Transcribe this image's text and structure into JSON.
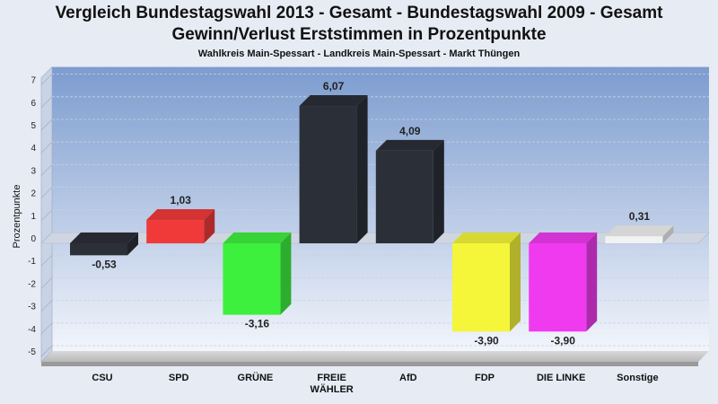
{
  "header": {
    "title_line1": "Vergleich Bundestagswahl 2013 - Gesamt - Bundestagswahl 2009 - Gesamt",
    "title_line2": "Gewinn/Verlust Erststimmen in Prozentpunkte",
    "subtitle": "Wahlkreis Main-Spessart - Landkreis Main-Spessart - Markt Thüngen"
  },
  "chart_data": {
    "type": "bar",
    "ylabel": "Prozentpunkte",
    "xlabel": "",
    "ylim": [
      -5,
      7
    ],
    "yticks": [
      7,
      6,
      5,
      4,
      3,
      2,
      1,
      0,
      -1,
      -2,
      -3,
      -4,
      -5
    ],
    "grid": true,
    "categories": [
      "CSU",
      "SPD",
      "GRÜNE",
      "FREIE WÄHLER",
      "AfD",
      "FDP",
      "DIE LINKE",
      "Sonstige"
    ],
    "category_lines": [
      [
        "CSU"
      ],
      [
        "SPD"
      ],
      [
        "GRÜNE"
      ],
      [
        "FREIE",
        "WÄHLER"
      ],
      [
        "AfD"
      ],
      [
        "FDP"
      ],
      [
        "DIE LINKE"
      ],
      [
        "Sonstige"
      ]
    ],
    "values": [
      -0.53,
      1.03,
      -3.16,
      6.07,
      4.09,
      -3.9,
      -3.9,
      0.31
    ],
    "value_labels": [
      "-0,53",
      "1,03",
      "-3,16",
      "6,07",
      "4,09",
      "-3,90",
      "-3,90",
      "0,31"
    ],
    "colors": [
      "#2b2f38",
      "#f03a3a",
      "#3ef03e",
      "#2b2f38",
      "#2b2f38",
      "#f5f53a",
      "#f03af0",
      "#f2f2f2"
    ]
  }
}
